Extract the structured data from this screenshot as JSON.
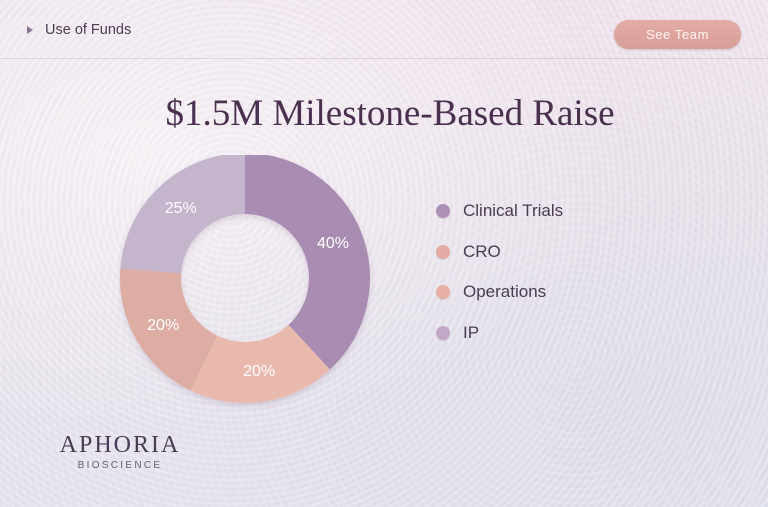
{
  "breadcrumb": {
    "label": "Use of Funds"
  },
  "header": {
    "team_button_label": "See Team",
    "accent_color": "#dca49e"
  },
  "title": "$1.5M Milestone-Based Raise",
  "chart_data": {
    "type": "pie",
    "variant": "donut",
    "title": "$1.5M Milestone-Based Raise",
    "categories": [
      "Clinical Trials",
      "CRO",
      "Operations",
      "IP"
    ],
    "values": [
      40,
      20,
      20,
      25
    ],
    "labels": [
      "40%",
      "20%",
      "20%",
      "25%"
    ],
    "colors": [
      "#a98cb2",
      "#e9b9ae",
      "#ddaca3",
      "#c4b4cc"
    ],
    "legend_position": "right"
  },
  "legend": {
    "items": [
      {
        "label": "Clinical Trials",
        "color": "#ad90b6"
      },
      {
        "label": "CRO",
        "color": "#e3aba3"
      },
      {
        "label": "Operations",
        "color": "#e6b0a7"
      },
      {
        "label": "IP",
        "color": "#c2a8c8"
      }
    ]
  },
  "brand": {
    "name": "APHORIA",
    "subtitle": "BIOSCIENCE"
  }
}
